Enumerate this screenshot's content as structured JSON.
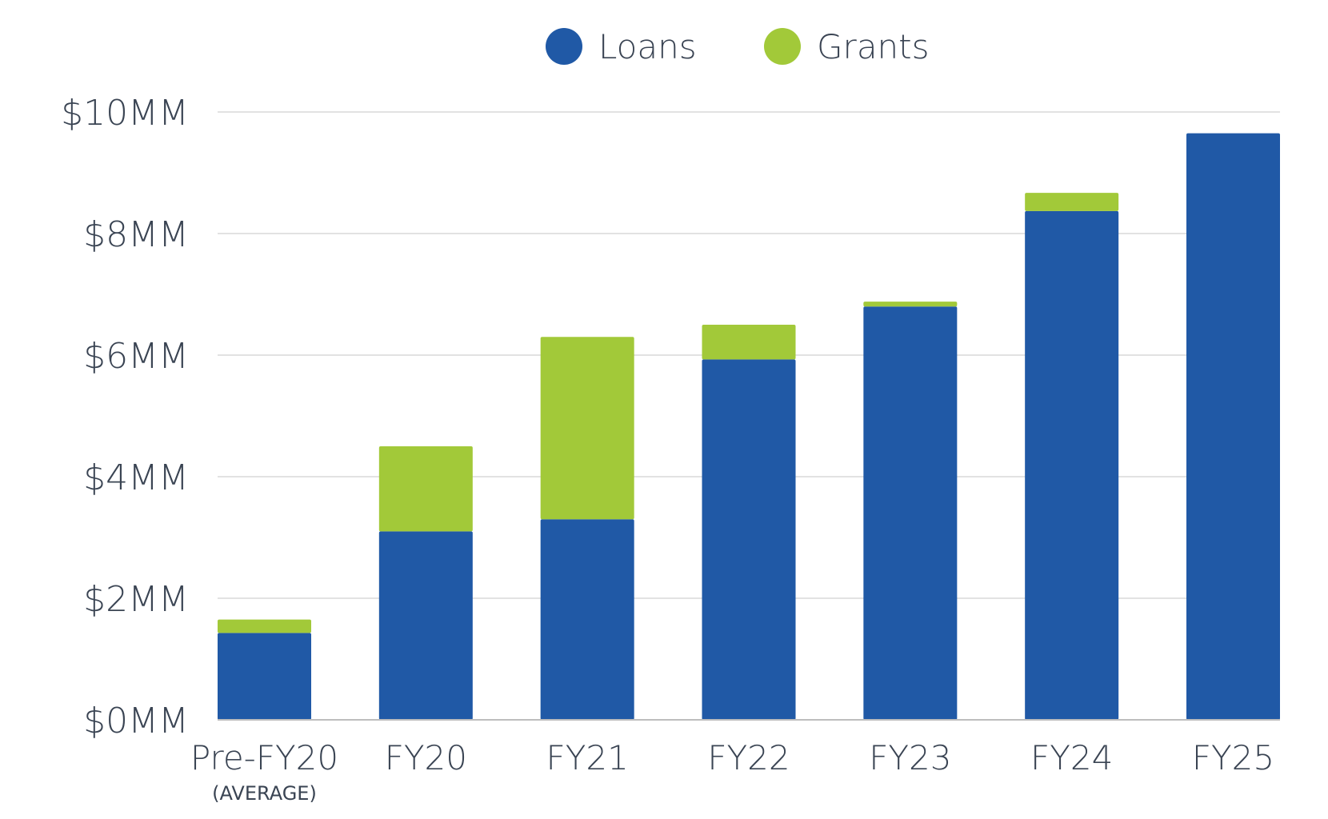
{
  "chart_data": {
    "type": "bar",
    "stacked": true,
    "title": "",
    "xlabel": "",
    "ylabel": "",
    "categories": [
      "Pre-FY20",
      "FY20",
      "FY21",
      "FY22",
      "FY23",
      "FY24",
      "FY25"
    ],
    "category_sublabels": [
      "(AVERAGE)",
      "",
      "",
      "",
      "",
      "",
      ""
    ],
    "series": [
      {
        "name": "Loans",
        "color": "#2059a6",
        "values": [
          1.43,
          3.1,
          3.3,
          5.93,
          6.8,
          8.37,
          9.65
        ]
      },
      {
        "name": "Grants",
        "color": "#a2c939",
        "values": [
          0.22,
          1.4,
          3.0,
          0.57,
          0.08,
          0.3,
          0
        ]
      }
    ],
    "ylim": [
      0,
      10
    ],
    "yticks": [
      0,
      2,
      4,
      6,
      8,
      10
    ],
    "ytick_labels": [
      "$0MM",
      "$2MM",
      "$4MM",
      "$6MM",
      "$8MM",
      "$10MM"
    ],
    "grid": true,
    "legend_position": "top-center"
  }
}
